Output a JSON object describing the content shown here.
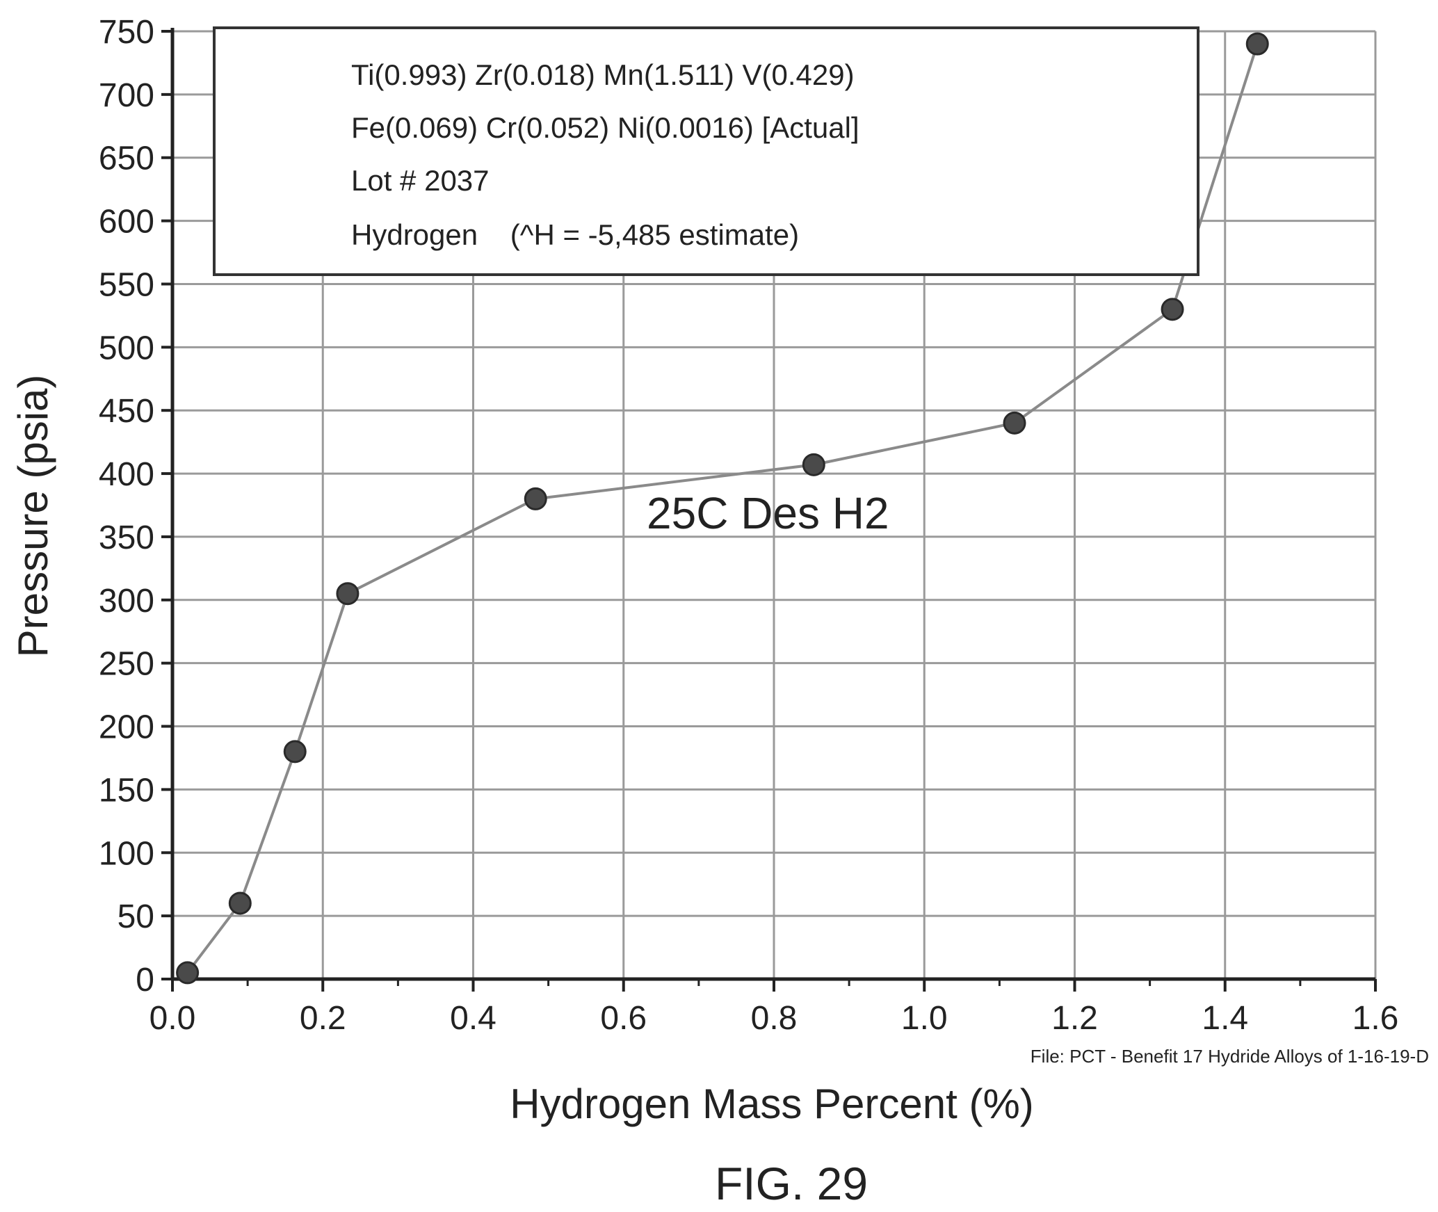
{
  "chart_data": {
    "type": "line",
    "title": "",
    "xlabel": "Hydrogen Mass Percent (%)",
    "ylabel": "Pressure (psia)",
    "xlim": [
      0.0,
      1.6
    ],
    "ylim": [
      0,
      750
    ],
    "x_ticks": [
      "0.0",
      "0.2",
      "0.4",
      "0.6",
      "0.8",
      "1.0",
      "1.2",
      "1.4",
      "1.6"
    ],
    "y_ticks": [
      "0",
      "50",
      "100",
      "150",
      "200",
      "250",
      "300",
      "350",
      "400",
      "450",
      "500",
      "550",
      "600",
      "650",
      "700",
      "750"
    ],
    "grid": true,
    "legend": {
      "placement": "top-left",
      "lines": [
        "Ti(0.993) Zr(0.018) Mn(1.511) V(0.429)",
        "Fe(0.069) Cr(0.052) Ni(0.0016) [Actual]",
        "Lot # 2037",
        "Hydrogen    (^H = -5,485 estimate)"
      ]
    },
    "series": [
      {
        "name": "25C Des H2",
        "x": [
          0.02,
          0.09,
          0.163,
          0.233,
          0.483,
          0.853,
          1.12,
          1.33,
          1.443
        ],
        "y": [
          5,
          60,
          180,
          305,
          380,
          407,
          440,
          530,
          740
        ]
      }
    ],
    "file_note": "File: PCT - Benefit 17 Hydride Alloys of 1-16-19-D",
    "colors": {
      "line": "#8a8a8a",
      "marker": "#4a4a4a",
      "grid": "#9a9a9a",
      "axis": "#222222"
    }
  },
  "figure_label": "FIG. 29"
}
